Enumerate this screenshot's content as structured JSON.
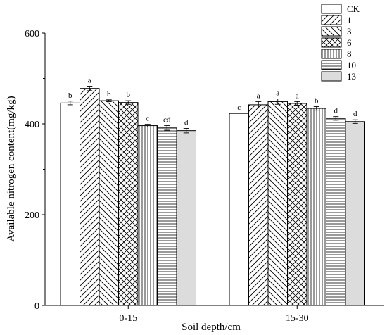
{
  "chart_data": {
    "type": "bar",
    "title": "",
    "xlabel": "Soil depth/cm",
    "ylabel": "Available nitrogen content(mg/kg)",
    "ylim": [
      0,
      600
    ],
    "yticks": [
      0,
      200,
      400,
      600
    ],
    "grid": false,
    "legend_position": "top-right",
    "categories": [
      "0-15",
      "15-30"
    ],
    "series": [
      {
        "name": "CK",
        "pattern": "none",
        "values": [
          446,
          423
        ],
        "errors": [
          4,
          0
        ],
        "labels": [
          "b",
          "c"
        ]
      },
      {
        "name": "1",
        "pattern": "diag-right",
        "values": [
          478,
          442
        ],
        "errors": [
          5,
          7
        ],
        "labels": [
          "a",
          "a"
        ]
      },
      {
        "name": "3",
        "pattern": "diag-left",
        "values": [
          451,
          449
        ],
        "errors": [
          2,
          6
        ],
        "labels": [
          "b",
          "a"
        ]
      },
      {
        "name": "6",
        "pattern": "crosshatch",
        "values": [
          447,
          445
        ],
        "errors": [
          4,
          4
        ],
        "labels": [
          "b",
          "a"
        ]
      },
      {
        "name": "8",
        "pattern": "vertical",
        "values": [
          396,
          434
        ],
        "errors": [
          3,
          4
        ],
        "labels": [
          "c",
          "b"
        ]
      },
      {
        "name": "10",
        "pattern": "horizontal",
        "values": [
          391,
          412
        ],
        "errors": [
          5,
          4
        ],
        "labels": [
          "cd",
          "d"
        ]
      },
      {
        "name": "13",
        "pattern": "gray",
        "values": [
          385,
          405
        ],
        "errors": [
          5,
          4
        ],
        "labels": [
          "d",
          "d"
        ]
      }
    ]
  }
}
